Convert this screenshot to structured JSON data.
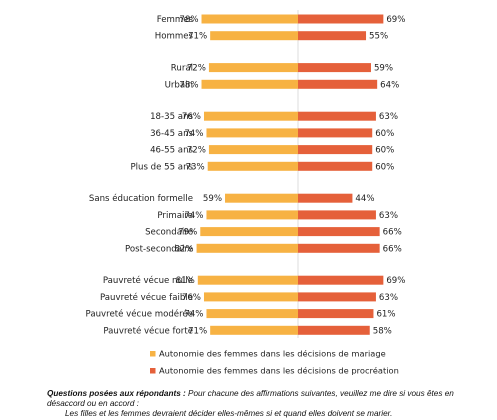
{
  "chart_data": {
    "type": "bar",
    "orientation": "diverging-horizontal",
    "series": [
      {
        "name": "Autonomie des femmes dans les décisions de mariage",
        "color": "#F7B243"
      },
      {
        "name": "Autonomie des femmes dans les décisions de procréation",
        "color": "#E5603A"
      }
    ],
    "groups": [
      {
        "rows": [
          {
            "label": "Femmes",
            "values": [
              78,
              69
            ]
          },
          {
            "label": "Hommes",
            "values": [
              71,
              55
            ]
          }
        ]
      },
      {
        "rows": [
          {
            "label": "Rural",
            "values": [
              72,
              59
            ]
          },
          {
            "label": "Urbain",
            "values": [
              78,
              64
            ]
          }
        ]
      },
      {
        "rows": [
          {
            "label": "18-35 ans",
            "values": [
              76,
              63
            ]
          },
          {
            "label": "36-45 ans",
            "values": [
              74,
              60
            ]
          },
          {
            "label": "46-55 ans",
            "values": [
              72,
              60
            ]
          },
          {
            "label": "Plus de 55 ans",
            "values": [
              73,
              60
            ]
          }
        ]
      },
      {
        "rows": [
          {
            "label": "Sans éducation formelle",
            "values": [
              59,
              44
            ]
          },
          {
            "label": "Primaire",
            "values": [
              74,
              63
            ]
          },
          {
            "label": "Secondaire",
            "values": [
              79,
              66
            ]
          },
          {
            "label": "Post-secondaire",
            "values": [
              82,
              66
            ]
          }
        ]
      },
      {
        "rows": [
          {
            "label": "Pauvreté vécue nulle",
            "values": [
              81,
              69
            ]
          },
          {
            "label": "Pauvreté vécue faible",
            "values": [
              76,
              63
            ]
          },
          {
            "label": "Pauvreté vécue modérée",
            "values": [
              74,
              61
            ]
          },
          {
            "label": "Pauvreté vécue forte",
            "values": [
              71,
              58
            ]
          }
        ]
      }
    ],
    "value_suffix": "%",
    "legend_position": "bottom-center"
  },
  "footnote": {
    "question_label": "Questions posées aux répondants :",
    "question_text": "Pour chacune des affirmations suivantes, veuillez me dire si vous êtes en désaccord ou en accord :",
    "statement": "Les filles et les femmes devraient décider elles-mêmes si et quand elles doivent se marier."
  }
}
